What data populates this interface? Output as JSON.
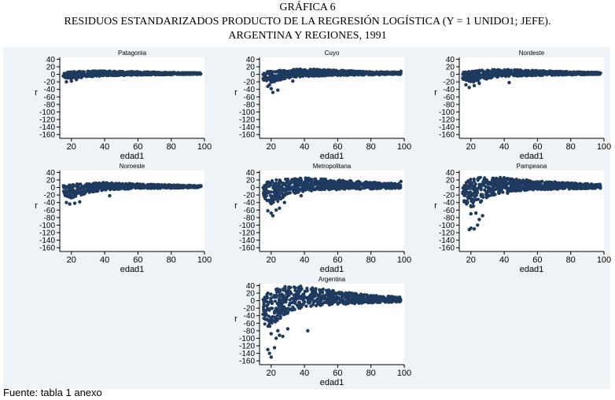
{
  "figure": {
    "number": "GRÁFICA 6",
    "title_line1": "RESIDUOS ESTANDARIZADOS PRODUCTO DE LA REGRESIÓN LOGÍSTICA (Y = 1 UNIDO1; JEFE).",
    "title_line2": "ARGENTINA Y REGIONES, 1991",
    "source": "Fuente: tabla 1 anexo"
  },
  "colors": {
    "points": "#1f3a5f",
    "plot_bg": "#ffffff",
    "outer_bg": "#eef3f8"
  },
  "chart_data": [
    {
      "type": "scatter",
      "title": "Patagonia",
      "xlabel": "edad1",
      "ylabel": "r",
      "xlim": [
        13,
        100
      ],
      "ylim": [
        -170,
        45
      ],
      "xticks": [
        20,
        40,
        60,
        80,
        100
      ],
      "yticks": [
        40,
        20,
        0,
        -20,
        -40,
        -60,
        -80,
        -100,
        -120,
        -140,
        -160
      ],
      "band": [
        {
          "x": 15,
          "lo": -8,
          "hi": 4
        },
        {
          "x": 20,
          "lo": -12,
          "hi": 7
        },
        {
          "x": 30,
          "lo": -7,
          "hi": 9
        },
        {
          "x": 40,
          "lo": -4,
          "hi": 9
        },
        {
          "x": 60,
          "lo": -2,
          "hi": 7
        },
        {
          "x": 80,
          "lo": -1,
          "hi": 5
        },
        {
          "x": 98,
          "lo": 0,
          "hi": 4
        }
      ],
      "outliers": [
        {
          "x": 17,
          "y": -20
        },
        {
          "x": 20,
          "y": -18
        },
        {
          "x": 23,
          "y": -14
        }
      ]
    },
    {
      "type": "scatter",
      "title": "Cuyo",
      "xlabel": "edad1",
      "ylabel": "r",
      "xlim": [
        13,
        100
      ],
      "ylim": [
        -170,
        45
      ],
      "xticks": [
        20,
        40,
        60,
        80,
        100
      ],
      "yticks": [
        40,
        20,
        0,
        -20,
        -40,
        -60,
        -80,
        -100,
        -120,
        -140,
        -160
      ],
      "band": [
        {
          "x": 15,
          "lo": -15,
          "hi": 5
        },
        {
          "x": 20,
          "lo": -22,
          "hi": 9
        },
        {
          "x": 30,
          "lo": -10,
          "hi": 12
        },
        {
          "x": 40,
          "lo": -6,
          "hi": 15
        },
        {
          "x": 60,
          "lo": -3,
          "hi": 11
        },
        {
          "x": 80,
          "lo": -2,
          "hi": 7
        },
        {
          "x": 98,
          "lo": 0,
          "hi": 6
        }
      ],
      "outliers": [
        {
          "x": 18,
          "y": -32
        },
        {
          "x": 20,
          "y": -38
        },
        {
          "x": 21,
          "y": -48
        },
        {
          "x": 24,
          "y": -42
        },
        {
          "x": 19,
          "y": -28
        },
        {
          "x": 33,
          "y": -18
        },
        {
          "x": 98,
          "y": 8
        }
      ]
    },
    {
      "type": "scatter",
      "title": "Nordeste",
      "xlabel": "edad1",
      "ylabel": "r",
      "xlim": [
        13,
        100
      ],
      "ylim": [
        -170,
        45
      ],
      "xticks": [
        20,
        40,
        60,
        80,
        100
      ],
      "yticks": [
        40,
        20,
        0,
        -20,
        -40,
        -60,
        -80,
        -100,
        -120,
        -140,
        -160
      ],
      "band": [
        {
          "x": 15,
          "lo": -14,
          "hi": 5
        },
        {
          "x": 20,
          "lo": -22,
          "hi": 9
        },
        {
          "x": 30,
          "lo": -12,
          "hi": 12
        },
        {
          "x": 40,
          "lo": -6,
          "hi": 13
        },
        {
          "x": 60,
          "lo": -3,
          "hi": 10
        },
        {
          "x": 80,
          "lo": -2,
          "hi": 7
        },
        {
          "x": 98,
          "lo": 0,
          "hi": 5
        }
      ],
      "outliers": [
        {
          "x": 17,
          "y": -28
        },
        {
          "x": 19,
          "y": -35
        },
        {
          "x": 22,
          "y": -30
        },
        {
          "x": 25,
          "y": -24
        },
        {
          "x": 43,
          "y": -22
        }
      ]
    },
    {
      "type": "scatter",
      "title": "Noroeste",
      "xlabel": "edad1",
      "ylabel": "r",
      "xlim": [
        13,
        100
      ],
      "ylim": [
        -170,
        45
      ],
      "xticks": [
        20,
        40,
        60,
        80,
        100
      ],
      "yticks": [
        40,
        20,
        0,
        -20,
        -40,
        -60,
        -80,
        -100,
        -120,
        -140,
        -160
      ],
      "band": [
        {
          "x": 15,
          "lo": -20,
          "hi": 5
        },
        {
          "x": 20,
          "lo": -28,
          "hi": 8
        },
        {
          "x": 30,
          "lo": -14,
          "hi": 12
        },
        {
          "x": 40,
          "lo": -7,
          "hi": 13
        },
        {
          "x": 60,
          "lo": -3,
          "hi": 10
        },
        {
          "x": 80,
          "lo": -2,
          "hi": 7
        },
        {
          "x": 98,
          "lo": 0,
          "hi": 5
        }
      ],
      "outliers": [
        {
          "x": 17,
          "y": -40
        },
        {
          "x": 19,
          "y": -44
        },
        {
          "x": 22,
          "y": -42
        },
        {
          "x": 25,
          "y": -38
        },
        {
          "x": 43,
          "y": -22
        }
      ]
    },
    {
      "type": "scatter",
      "title": "Metropolitana",
      "xlabel": "edad1",
      "ylabel": "r",
      "xlim": [
        13,
        100
      ],
      "ylim": [
        -170,
        45
      ],
      "xticks": [
        20,
        40,
        60,
        80,
        100
      ],
      "yticks": [
        40,
        20,
        0,
        -20,
        -40,
        -60,
        -80,
        -100,
        -120,
        -140,
        -160
      ],
      "band": [
        {
          "x": 15,
          "lo": -30,
          "hi": 10
        },
        {
          "x": 20,
          "lo": -45,
          "hi": 18
        },
        {
          "x": 25,
          "lo": -35,
          "hi": 22
        },
        {
          "x": 30,
          "lo": -20,
          "hi": 24
        },
        {
          "x": 40,
          "lo": -10,
          "hi": 26
        },
        {
          "x": 60,
          "lo": -6,
          "hi": 20
        },
        {
          "x": 80,
          "lo": -4,
          "hi": 14
        },
        {
          "x": 98,
          "lo": -2,
          "hi": 10
        }
      ],
      "outliers": [
        {
          "x": 18,
          "y": -62
        },
        {
          "x": 20,
          "y": -68
        },
        {
          "x": 21,
          "y": -75
        },
        {
          "x": 23,
          "y": -60
        },
        {
          "x": 25,
          "y": -55
        },
        {
          "x": 28,
          "y": -40
        },
        {
          "x": 38,
          "y": -22
        },
        {
          "x": 98,
          "y": 16
        }
      ]
    },
    {
      "type": "scatter",
      "title": "Pampeana",
      "xlabel": "edad1",
      "ylabel": "r",
      "xlim": [
        13,
        100
      ],
      "ylim": [
        -170,
        45
      ],
      "xticks": [
        20,
        40,
        60,
        80,
        100
      ],
      "yticks": [
        40,
        20,
        0,
        -20,
        -40,
        -60,
        -80,
        -100,
        -120,
        -140,
        -160
      ],
      "band": [
        {
          "x": 15,
          "lo": -35,
          "hi": 12
        },
        {
          "x": 20,
          "lo": -55,
          "hi": 22
        },
        {
          "x": 25,
          "lo": -42,
          "hi": 27
        },
        {
          "x": 30,
          "lo": -25,
          "hi": 28
        },
        {
          "x": 40,
          "lo": -12,
          "hi": 27
        },
        {
          "x": 60,
          "lo": -6,
          "hi": 18
        },
        {
          "x": 80,
          "lo": -4,
          "hi": 12
        },
        {
          "x": 98,
          "lo": -2,
          "hi": 9
        }
      ],
      "outliers": [
        {
          "x": 19,
          "y": -112
        },
        {
          "x": 20,
          "y": -108
        },
        {
          "x": 22,
          "y": -110
        },
        {
          "x": 24,
          "y": -100
        },
        {
          "x": 25,
          "y": -85
        },
        {
          "x": 27,
          "y": -75
        },
        {
          "x": 20,
          "y": -70
        },
        {
          "x": 23,
          "y": -68
        },
        {
          "x": 42,
          "y": -15
        }
      ]
    },
    {
      "type": "scatter",
      "title": "Argentina",
      "xlabel": "edad1",
      "ylabel": "r",
      "xlim": [
        13,
        100
      ],
      "ylim": [
        -170,
        45
      ],
      "xticks": [
        20,
        40,
        60,
        80,
        100
      ],
      "yticks": [
        40,
        20,
        0,
        -20,
        -40,
        -60,
        -80,
        -100,
        -120,
        -140,
        -160
      ],
      "band": [
        {
          "x": 15,
          "lo": -60,
          "hi": 15
        },
        {
          "x": 18,
          "lo": -72,
          "hi": 24
        },
        {
          "x": 22,
          "lo": -60,
          "hi": 32
        },
        {
          "x": 28,
          "lo": -38,
          "hi": 38
        },
        {
          "x": 35,
          "lo": -22,
          "hi": 40
        },
        {
          "x": 45,
          "lo": -15,
          "hi": 36
        },
        {
          "x": 60,
          "lo": -10,
          "hi": 25
        },
        {
          "x": 80,
          "lo": -6,
          "hi": 14
        },
        {
          "x": 98,
          "lo": -3,
          "hi": 10
        }
      ],
      "outliers": [
        {
          "x": 18,
          "y": -130
        },
        {
          "x": 19,
          "y": -140
        },
        {
          "x": 20,
          "y": -150
        },
        {
          "x": 22,
          "y": -125
        },
        {
          "x": 23,
          "y": -100
        },
        {
          "x": 25,
          "y": -92
        },
        {
          "x": 27,
          "y": -95
        },
        {
          "x": 24,
          "y": -80
        },
        {
          "x": 20,
          "y": -88
        },
        {
          "x": 30,
          "y": -75
        },
        {
          "x": 42,
          "y": -80
        }
      ]
    }
  ]
}
